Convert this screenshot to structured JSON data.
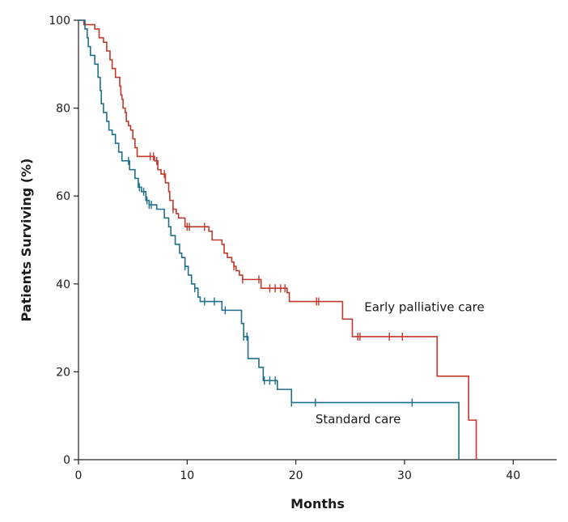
{
  "chart_data": {
    "type": "line",
    "step": true,
    "xlabel": "Months",
    "ylabel": "Patients Surviving (%)",
    "xlim": [
      0,
      44
    ],
    "ylim": [
      0,
      100
    ],
    "xticks": [
      0,
      10,
      20,
      30,
      40
    ],
    "yticks": [
      0,
      20,
      40,
      60,
      80,
      100
    ],
    "grid": false,
    "legend": "inline labels",
    "series": [
      {
        "name": "Early palliative care",
        "color": "#c0392b",
        "label_at": [
          26.3,
          33.8
        ],
        "steps": [
          [
            0,
            100
          ],
          [
            0.5,
            99
          ],
          [
            1.5,
            98
          ],
          [
            1.9,
            96
          ],
          [
            2.3,
            95
          ],
          [
            2.6,
            93
          ],
          [
            2.9,
            91
          ],
          [
            3.1,
            89
          ],
          [
            3.4,
            87
          ],
          [
            3.8,
            85
          ],
          [
            3.9,
            83
          ],
          [
            4.0,
            82
          ],
          [
            4.1,
            80
          ],
          [
            4.3,
            79
          ],
          [
            4.4,
            77
          ],
          [
            4.6,
            76
          ],
          [
            4.8,
            75
          ],
          [
            5.0,
            73
          ],
          [
            5.2,
            71
          ],
          [
            5.4,
            69
          ],
          [
            7.0,
            68
          ],
          [
            7.3,
            66
          ],
          [
            7.6,
            65
          ],
          [
            8.0,
            63
          ],
          [
            8.3,
            61
          ],
          [
            8.4,
            59
          ],
          [
            8.7,
            57
          ],
          [
            9.0,
            56
          ],
          [
            9.2,
            55
          ],
          [
            9.8,
            53
          ],
          [
            12.0,
            52
          ],
          [
            12.3,
            50
          ],
          [
            13.2,
            49
          ],
          [
            13.4,
            47
          ],
          [
            13.7,
            46
          ],
          [
            14.1,
            45
          ],
          [
            14.3,
            44
          ],
          [
            14.5,
            43
          ],
          [
            14.8,
            42
          ],
          [
            15.1,
            41
          ],
          [
            16.8,
            39
          ],
          [
            19.2,
            38
          ],
          [
            19.4,
            36
          ],
          [
            24.3,
            32
          ],
          [
            25.2,
            28
          ],
          [
            33.0,
            19
          ],
          [
            35.9,
            9
          ],
          [
            36.6,
            0
          ]
        ],
        "censor_x": [
          6.6,
          6.9,
          7.2,
          7.9,
          8.7,
          10.0,
          10.2,
          11.6,
          14.3,
          15.1,
          16.6,
          17.6,
          18.1,
          18.6,
          19.0,
          21.9,
          22.1,
          25.7,
          25.9,
          28.6,
          29.8
        ]
      },
      {
        "name": "Standard care",
        "color": "#1f6f8b",
        "label_at": [
          21.8,
          8.3
        ],
        "steps": [
          [
            0,
            100
          ],
          [
            0.6,
            98
          ],
          [
            0.8,
            96
          ],
          [
            0.9,
            94
          ],
          [
            1.1,
            92
          ],
          [
            1.5,
            90
          ],
          [
            1.8,
            87
          ],
          [
            2.0,
            84
          ],
          [
            2.1,
            81
          ],
          [
            2.3,
            79
          ],
          [
            2.6,
            77
          ],
          [
            2.8,
            75
          ],
          [
            3.1,
            74
          ],
          [
            3.4,
            72
          ],
          [
            3.7,
            70
          ],
          [
            4.0,
            68
          ],
          [
            4.7,
            66
          ],
          [
            5.2,
            64
          ],
          [
            5.5,
            62
          ],
          [
            5.8,
            61
          ],
          [
            6.2,
            59
          ],
          [
            6.5,
            58
          ],
          [
            7.2,
            57
          ],
          [
            7.9,
            55
          ],
          [
            8.3,
            53
          ],
          [
            8.5,
            51
          ],
          [
            8.9,
            49
          ],
          [
            9.3,
            47
          ],
          [
            9.5,
            46
          ],
          [
            9.8,
            44
          ],
          [
            10.1,
            42
          ],
          [
            10.4,
            40
          ],
          [
            10.7,
            39
          ],
          [
            11.0,
            37
          ],
          [
            11.2,
            36
          ],
          [
            13.2,
            34
          ],
          [
            15.0,
            31
          ],
          [
            15.2,
            28
          ],
          [
            15.6,
            23
          ],
          [
            16.6,
            21
          ],
          [
            17.0,
            18
          ],
          [
            18.3,
            16
          ],
          [
            19.6,
            13
          ],
          [
            35.0,
            0
          ]
        ],
        "censor_x": [
          4.6,
          5.6,
          6.0,
          6.3,
          6.5,
          6.7,
          9.8,
          10.7,
          11.6,
          12.5,
          13.5,
          15.2,
          15.5,
          17.1,
          17.6,
          18.1,
          19.6,
          21.8,
          30.7
        ]
      }
    ]
  }
}
